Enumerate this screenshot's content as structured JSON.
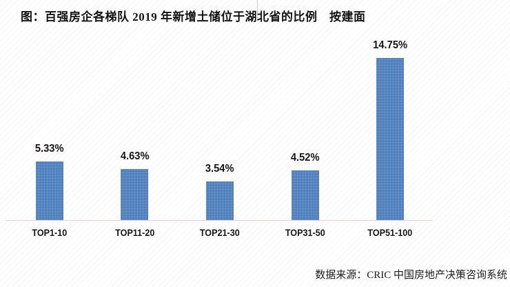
{
  "title": "图：百强房企各梯队 2019 年新增土储位于湖北省的比例　按建面",
  "source_note": "数据来源：CRIC 中国房地产决策咨询系统",
  "colors": {
    "bar_fill": "#4E80BD",
    "axis_line": "#E6D2D2",
    "text": "#161616",
    "background": "#FFFFFF"
  },
  "chart_data": {
    "type": "bar",
    "title": "图：百强房企各梯队 2019 年新增土储位于湖北省的比例　按建面",
    "categories": [
      "TOP1-10",
      "TOP11-20",
      "TOP21-30",
      "TOP31-50",
      "TOP51-100"
    ],
    "values": [
      5.33,
      4.63,
      3.54,
      4.52,
      14.75
    ],
    "value_labels": [
      "5.33%",
      "4.63%",
      "3.54%",
      "4.52%",
      "14.75%"
    ],
    "xlabel": "",
    "ylabel": "",
    "ylim": [
      0,
      17.5
    ],
    "grid": false,
    "legend": false,
    "y_axis_visible": false,
    "data_labels_position": "above-bars",
    "bar_color": "#4E80BD",
    "source": "数据来源：CRIC 中国房地产决策咨询系统"
  }
}
